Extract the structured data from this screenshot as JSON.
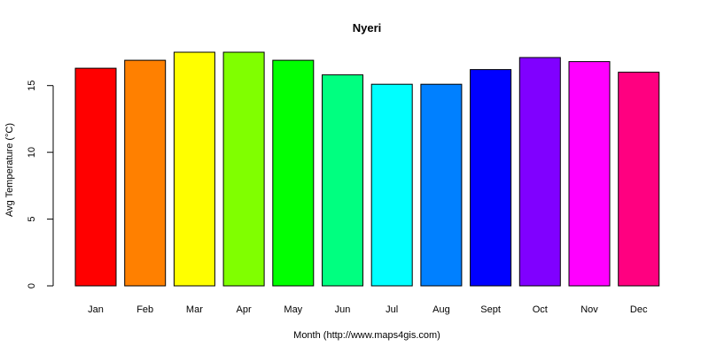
{
  "chart_data": {
    "type": "bar",
    "title": "Nyeri",
    "xlabel": "Month (http://www.maps4gis.com)",
    "ylabel": "Avg Temperature (°C)",
    "categories": [
      "Jan",
      "Feb",
      "Mar",
      "Apr",
      "May",
      "Jun",
      "Jul",
      "Aug",
      "Sept",
      "Oct",
      "Nov",
      "Dec"
    ],
    "values": [
      16.3,
      16.9,
      17.5,
      17.5,
      16.9,
      15.8,
      15.1,
      15.1,
      16.2,
      17.1,
      16.8,
      16.0
    ],
    "colors": [
      "#FF0000",
      "#FF8000",
      "#FFFF00",
      "#80FF00",
      "#00FF00",
      "#00FF80",
      "#00FFFF",
      "#0080FF",
      "#0000FF",
      "#8000FF",
      "#FF00FF",
      "#FF0080"
    ],
    "yticks": [
      0,
      5,
      10,
      15
    ],
    "ylim": [
      0,
      17.5
    ],
    "grid": false,
    "legend": "none"
  }
}
